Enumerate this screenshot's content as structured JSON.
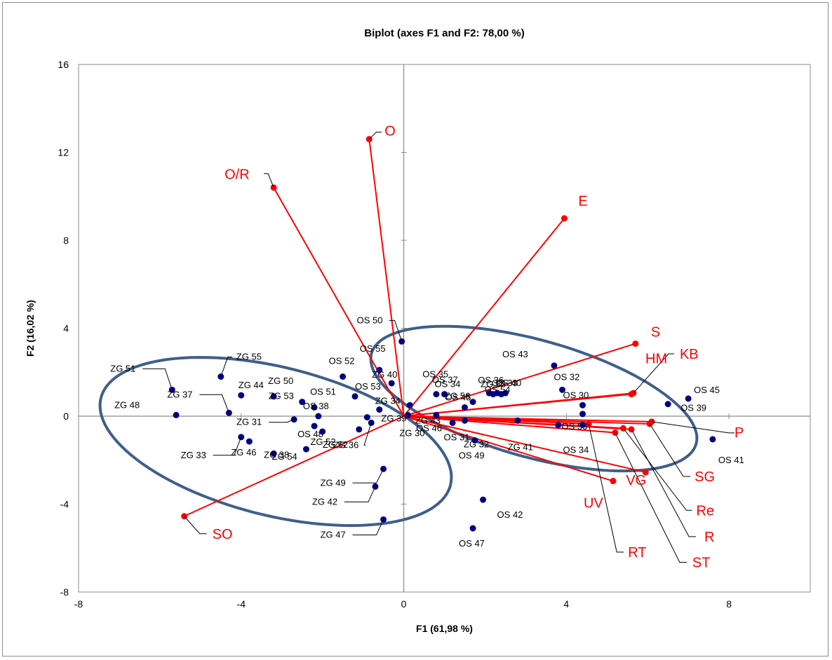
{
  "chart_data": {
    "type": "scatter",
    "title": "Biplot (axes F1 and F2: 78,00 %)",
    "xlabel": "F1 (61,98 %)",
    "ylabel": "F2 (16,02 %)",
    "xlim": [
      -8,
      10
    ],
    "ylim": [
      -8,
      16
    ],
    "x_ticks": [
      -8,
      -4,
      0,
      4,
      8
    ],
    "y_ticks": [
      -8,
      -4,
      0,
      4,
      8,
      12,
      16
    ],
    "tick_labels_x": [
      "-8",
      "-4",
      "0",
      "4",
      "8"
    ],
    "tick_labels_y": [
      "-8",
      "-4",
      "0",
      "4",
      "8",
      "12",
      "16"
    ],
    "grid": false,
    "colors": {
      "observations": "#000080",
      "variables": "#ff0000",
      "ellipses": "#3f5f8a"
    },
    "observations": [
      {
        "label": "ZG 51",
        "x": -5.7,
        "y": 1.2
      },
      {
        "label": "ZG 48",
        "x": -5.6,
        "y": 0.05
      },
      {
        "label": "ZG 55",
        "x": -4.5,
        "y": 1.8
      },
      {
        "label": "ZG 37",
        "x": -4.3,
        "y": 0.15
      },
      {
        "label": "ZG 44",
        "x": -4.0,
        "y": 0.95
      },
      {
        "label": "ZG 50",
        "x": -3.2,
        "y": 0.9
      },
      {
        "label": "ZG 53",
        "x": -2.5,
        "y": 0.65
      },
      {
        "label": "OS 51",
        "x": -2.2,
        "y": 0.4
      },
      {
        "label": "OS 38",
        "x": -2.1,
        "y": 0.0
      },
      {
        "label": "OS 52",
        "x": -1.5,
        "y": 1.8
      },
      {
        "label": "OS 55",
        "x": -0.6,
        "y": 2.1
      },
      {
        "label": "OS 50",
        "x": -0.05,
        "y": 3.4
      },
      {
        "label": "OS 53",
        "x": -1.2,
        "y": 0.9
      },
      {
        "label": "ZG 40",
        "x": -0.3,
        "y": 1.5
      },
      {
        "label": "ZG 34",
        "x": -0.6,
        "y": 0.3
      },
      {
        "label": "ZG 39",
        "x": -0.9,
        "y": -0.05
      },
      {
        "label": "ZG 31",
        "x": -2.7,
        "y": -0.15
      },
      {
        "label": "OS 48",
        "x": -2.2,
        "y": -0.45
      },
      {
        "label": "ZG 52",
        "x": -1.1,
        "y": -0.6
      },
      {
        "label": "ZG 54",
        "x": -2.0,
        "y": -0.7
      },
      {
        "label": "ZG 36",
        "x": -0.8,
        "y": -0.3
      },
      {
        "label": "ZG 30",
        "x": 0.1,
        "y": 0.05
      },
      {
        "label": "ZG 33",
        "x": -4.0,
        "y": -0.95
      },
      {
        "label": "ZG 46",
        "x": -3.8,
        "y": -1.15
      },
      {
        "label": "ZG 38",
        "x": -3.2,
        "y": -1.7
      },
      {
        "label": "ZG 52",
        "x": -2.4,
        "y": -1.5
      },
      {
        "label": "ZG 49",
        "x": -0.5,
        "y": -2.4
      },
      {
        "label": "ZG 42",
        "x": -0.7,
        "y": -3.2
      },
      {
        "label": "ZG 47",
        "x": -0.5,
        "y": -4.7
      },
      {
        "label": "OS 35",
        "x": 0.15,
        "y": 0.5
      },
      {
        "label": "OS 37",
        "x": 0.8,
        "y": 1.0
      },
      {
        "label": "ZG 43",
        "x": 0.8,
        "y": 0.05
      },
      {
        "label": "OS 34",
        "x": 1.0,
        "y": 1.0
      },
      {
        "label": "OS 45",
        "x": 1.5,
        "y": 0.4
      },
      {
        "label": "ZG 56",
        "x": 1.7,
        "y": 0.65
      },
      {
        "label": "OS 36",
        "x": 2.1,
        "y": 1.05
      },
      {
        "label": "OS 54",
        "x": 2.4,
        "y": 1.0
      },
      {
        "label": "ZG 35",
        "x": 2.2,
        "y": 1.0
      },
      {
        "label": "OS 33",
        "x": 2.3,
        "y": 1.05
      },
      {
        "label": "OS 40",
        "x": 2.5,
        "y": 1.05
      },
      {
        "label": "OS 46",
        "x": 1.2,
        "y": -0.3
      },
      {
        "label": "OS 31",
        "x": 1.5,
        "y": -0.2
      },
      {
        "label": "ZG 32",
        "x": 1.75,
        "y": -1.1
      },
      {
        "label": "OS 49",
        "x": 2.8,
        "y": -0.2
      },
      {
        "label": "ZG 41",
        "x": 3.8,
        "y": -0.4
      },
      {
        "label": "OS 43",
        "x": 3.7,
        "y": 2.3
      },
      {
        "label": "OS 32",
        "x": 3.9,
        "y": 1.2
      },
      {
        "label": "OS 30",
        "x": 4.4,
        "y": 0.5
      },
      {
        "label": "OS 56",
        "x": 4.4,
        "y": 0.1
      },
      {
        "label": "OS 34",
        "x": 4.4,
        "y": -0.4
      },
      {
        "label": "OS 39",
        "x": 6.5,
        "y": 0.55
      },
      {
        "label": "OS 45",
        "x": 7.0,
        "y": 0.8
      },
      {
        "label": "OS 41",
        "x": 7.6,
        "y": -1.05
      },
      {
        "label": "OS 42",
        "x": 1.95,
        "y": -3.8
      },
      {
        "label": "OS 47",
        "x": 1.7,
        "y": -5.1
      }
    ],
    "variables": [
      {
        "label": "O",
        "x": -0.85,
        "y": 12.6
      },
      {
        "label": "O/R",
        "x": -3.2,
        "y": 10.4
      },
      {
        "label": "E",
        "x": 3.95,
        "y": 9.0
      },
      {
        "label": "S",
        "x": 5.7,
        "y": 3.3
      },
      {
        "label": "KB",
        "x": 5.65,
        "y": 1.05
      },
      {
        "label": "HM",
        "x": 5.6,
        "y": 1.0
      },
      {
        "label": "P",
        "x": 6.1,
        "y": -0.25
      },
      {
        "label": "SG",
        "x": 6.05,
        "y": -0.35
      },
      {
        "label": "Re",
        "x": 5.4,
        "y": -0.55
      },
      {
        "label": "R",
        "x": 5.6,
        "y": -0.6
      },
      {
        "label": "ST",
        "x": 5.2,
        "y": -0.75
      },
      {
        "label": "VG",
        "x": 5.95,
        "y": -2.55
      },
      {
        "label": "UV",
        "x": 5.15,
        "y": -2.95
      },
      {
        "label": "RT",
        "x": 4.55,
        "y": -0.35
      },
      {
        "label": "SO",
        "x": -5.4,
        "y": -4.55
      }
    ],
    "ellipses": [
      {
        "cx": -3.15,
        "cy": -1.15,
        "rx": 4.9,
        "ry": 3.05,
        "angle_deg": -37
      },
      {
        "cx": 3.2,
        "cy": 0.8,
        "rx": 4.6,
        "ry": 2.4,
        "angle_deg": -35
      }
    ]
  }
}
